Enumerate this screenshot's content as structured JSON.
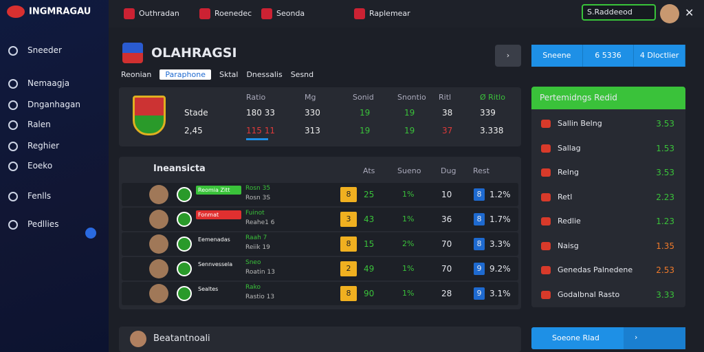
{
  "header": {
    "logo": "INGMRAGAU",
    "tabs": [
      "Outhradan",
      "Roenedec",
      "Seonda",
      "Raplemear"
    ],
    "search": "S.Raddeeod"
  },
  "sidebar": {
    "items": [
      "Sneeder",
      "Nemaagja",
      "Dnganhagan",
      "Ralen",
      "Reghier",
      "Eoeko",
      "Fenlls",
      "Pedllies"
    ]
  },
  "team": {
    "name": "OLAHRAGSI",
    "subtabs": [
      "Reonian",
      "Paraphone",
      "Sktal",
      "Dnessalis",
      "Sesnd"
    ],
    "buttons": [
      "Sneene",
      "6 5336",
      "4 Dloctlier"
    ]
  },
  "stats": {
    "headers": [
      "Ratio",
      "Mg",
      "Sonid",
      "Snontio",
      "Ritl",
      "Ø Ritlo"
    ],
    "rows": [
      [
        "Stade",
        "180  33",
        "330",
        "19",
        "19",
        "38",
        "339"
      ],
      [
        "2,45",
        "115  11",
        "313",
        "19",
        "19",
        "37",
        "3.338"
      ]
    ]
  },
  "list": {
    "title": "Ineansicta",
    "columns": [
      "Ats",
      "Sueno",
      "Dug",
      "Rest"
    ],
    "rows": [
      {
        "tag": "Reomia Zitt",
        "name": "Rosn 35",
        "sub": "Rosn 3S",
        "rank": "8",
        "a": "25",
        "b": "1%",
        "c": "10",
        "badge": "8",
        "d": "1.2%"
      },
      {
        "tag": "Fonmat",
        "name": "Fuinot",
        "sub": "Reahe1 6",
        "rank": "3",
        "a": "43",
        "b": "1%",
        "c": "36",
        "badge": "8",
        "d": "1.7%"
      },
      {
        "tag": "Eemenadas",
        "name": "Raah 7",
        "sub": "Reiik 19",
        "rank": "8",
        "a": "15",
        "b": "2%",
        "c": "70",
        "badge": "8",
        "d": "3.3%"
      },
      {
        "tag": "Sennvessela",
        "name": "Sneo",
        "sub": "Roatin 13",
        "rank": "2",
        "a": "49",
        "b": "1%",
        "c": "70",
        "badge": "9",
        "d": "9.2%"
      },
      {
        "tag": "Sealtes",
        "name": "Rako",
        "sub": "Rastio 13",
        "rank": "8",
        "a": "90",
        "b": "1%",
        "c": "28",
        "badge": "9",
        "d": "3.1%"
      }
    ]
  },
  "ranking": {
    "title": "Pertemidngs Redid",
    "rows": [
      [
        "Sallin Belng",
        "3.53"
      ],
      [
        "Sallag",
        "1.53"
      ],
      [
        "Relng",
        "3.53"
      ],
      [
        "Retl",
        "2.23"
      ],
      [
        "Redlie",
        "1.23"
      ],
      [
        "Naisg",
        "1.35"
      ],
      [
        "Genedas Palnedene",
        "2.53"
      ],
      [
        "Godalbnal Rasto",
        "3.33"
      ]
    ]
  },
  "bottom": {
    "title": "Beatantnoali",
    "button": "Soeone Rlad"
  }
}
